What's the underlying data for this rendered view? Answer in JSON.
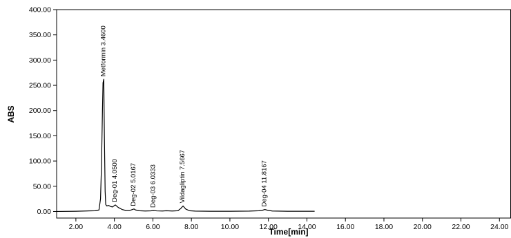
{
  "chart_data": {
    "type": "line",
    "title": "",
    "xlabel": "Time[min]",
    "ylabel": "ABS",
    "xlim": [
      1.0,
      24.6
    ],
    "ylim": [
      -13,
      400
    ],
    "x_ticks": [
      2,
      4,
      6,
      8,
      10,
      12,
      14,
      16,
      18,
      20,
      22,
      24
    ],
    "x_tick_labels": [
      "2.00",
      "4.00",
      "6.00",
      "8.00",
      "10.00",
      "12.00",
      "14.00",
      "16.00",
      "18.00",
      "20.00",
      "22.00",
      "24.00"
    ],
    "y_ticks": [
      0,
      50,
      100,
      150,
      200,
      250,
      300,
      350,
      400
    ],
    "y_tick_labels": [
      "0.00",
      "50.00",
      "100.00",
      "150.00",
      "200.00",
      "250.00",
      "300.00",
      "350.00",
      "400.00"
    ],
    "grid": false,
    "legend": "none",
    "line_color": "#000000",
    "series": [
      {
        "x": [
          1.0,
          2.0,
          3.0,
          3.2,
          3.28,
          3.33,
          3.38,
          3.41,
          3.45,
          3.48,
          3.52,
          3.55,
          3.6,
          3.7,
          3.8,
          3.9,
          4.05,
          4.2,
          4.4,
          4.6,
          4.8,
          4.9,
          5.0167,
          5.1,
          5.3,
          5.6,
          5.9,
          6.0333,
          6.2,
          6.5,
          6.7,
          7.0,
          7.3,
          7.45,
          7.5667,
          7.7,
          7.9,
          8.2,
          9.0,
          10.0,
          11.0,
          11.5,
          11.7,
          11.8167,
          11.95,
          12.2,
          13.0,
          14.0,
          14.4
        ],
        "y": [
          0,
          0.5,
          1.5,
          3,
          25,
          90,
          200,
          255,
          262,
          150,
          40,
          14,
          11,
          12,
          10,
          9,
          13,
          8,
          4,
          2,
          2,
          3.5,
          5,
          3,
          1.5,
          1,
          1.3,
          2,
          1.2,
          1,
          1.5,
          1,
          1.5,
          6,
          11,
          5,
          1.5,
          0.8,
          0.5,
          0.5,
          0.8,
          1.5,
          2.5,
          4,
          2.5,
          1,
          0.5,
          0.5,
          0.5
        ]
      }
    ],
    "peaks": [
      {
        "label": "Metformin 3.4600",
        "x": 3.46,
        "y": 262
      },
      {
        "label": "Deg-01 4.0500",
        "x": 4.05,
        "y": 13
      },
      {
        "label": "Deg-02 5.0167",
        "x": 5.0167,
        "y": 5
      },
      {
        "label": "Deg-03 6.0333",
        "x": 6.0333,
        "y": 2
      },
      {
        "label": "Vildagliptin 7.5667",
        "x": 7.5667,
        "y": 11
      },
      {
        "label": "Deg-04 11.8167",
        "x": 11.8167,
        "y": 4
      }
    ]
  }
}
